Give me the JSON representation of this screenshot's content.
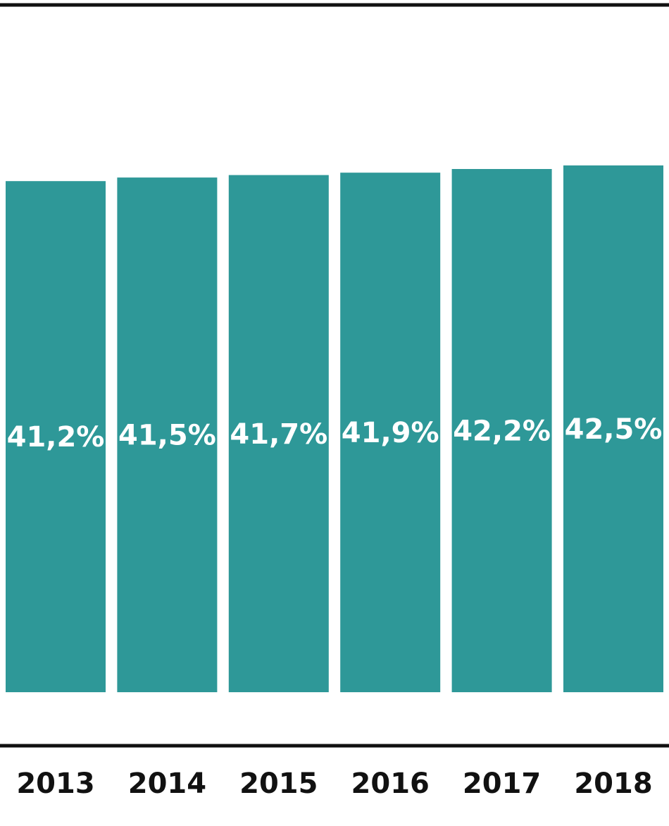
{
  "chart_data": {
    "type": "bar",
    "categories": [
      "2013",
      "2014",
      "2015",
      "2016",
      "2017",
      "2018"
    ],
    "values": [
      41.2,
      41.5,
      41.7,
      41.9,
      42.2,
      42.5
    ],
    "value_labels": [
      "41,2%",
      "41,5%",
      "41,7%",
      "41,9%",
      "42,2%",
      "42,5%"
    ],
    "title": "",
    "xlabel": "",
    "ylabel": "",
    "grid": false,
    "colors": {
      "bar": "#2e9898",
      "bar_label": "#ffffff",
      "axis": "#111111",
      "category_label": "#111111"
    }
  }
}
